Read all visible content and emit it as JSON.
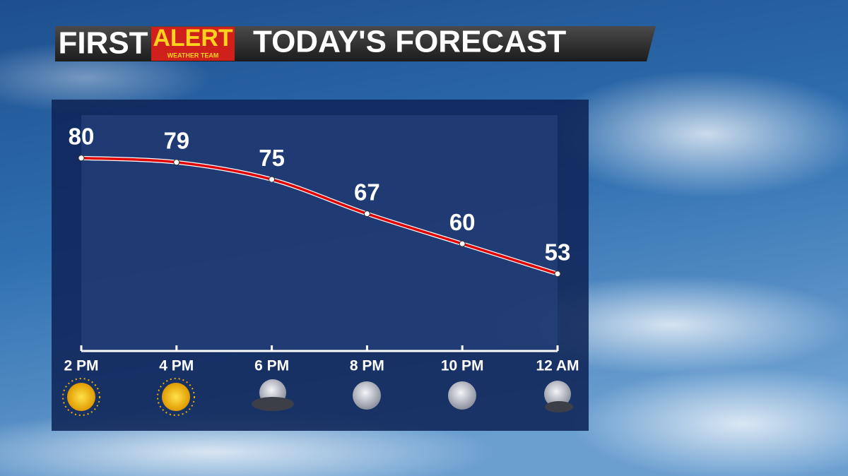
{
  "branding": {
    "first": "FIRST",
    "alert": "ALERT",
    "team": "WEATHER TEAM"
  },
  "chart_data": {
    "type": "line",
    "title": "TODAY'S FORECAST",
    "categories": [
      "2 PM",
      "4 PM",
      "6 PM",
      "8 PM",
      "10 PM",
      "12 AM"
    ],
    "values": [
      80,
      79,
      75,
      67,
      60,
      53
    ],
    "color": "#e00000",
    "ylim": [
      35,
      90
    ]
  }
}
